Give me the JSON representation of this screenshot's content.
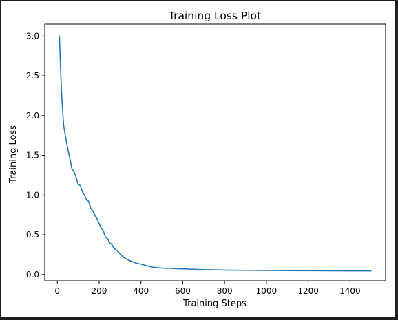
{
  "window": {
    "background": "#1e1e1e"
  },
  "chart_data": {
    "type": "line",
    "title": "Training Loss Plot",
    "xlabel": "Training Steps",
    "ylabel": "Training Loss",
    "xlim": [
      -60,
      1570
    ],
    "ylim": [
      -0.08,
      3.15
    ],
    "grid": false,
    "legend": "none",
    "xticks": [
      0,
      200,
      400,
      600,
      800,
      1000,
      1200,
      1400
    ],
    "yticks": [
      0.0,
      0.5,
      1.0,
      1.5,
      2.0,
      2.5,
      3.0
    ],
    "xtick_labels": [
      "0",
      "200",
      "400",
      "600",
      "800",
      "1000",
      "1200",
      "1400"
    ],
    "ytick_labels": [
      "0.0",
      "0.5",
      "1.0",
      "1.5",
      "2.0",
      "2.5",
      "3.0"
    ],
    "series": [
      {
        "color": "#1f77b4",
        "x": [
          10,
          20,
          30,
          40,
          50,
          60,
          70,
          80,
          90,
          100,
          110,
          120,
          130,
          140,
          150,
          160,
          170,
          180,
          190,
          200,
          210,
          220,
          230,
          240,
          250,
          260,
          270,
          280,
          290,
          300,
          320,
          340,
          360,
          380,
          400,
          420,
          440,
          460,
          480,
          500,
          550,
          600,
          650,
          700,
          750,
          800,
          900,
          1000,
          1100,
          1200,
          1300,
          1400,
          1500
        ],
        "y": [
          3.0,
          2.3,
          1.88,
          1.72,
          1.58,
          1.46,
          1.33,
          1.29,
          1.22,
          1.13,
          1.12,
          1.04,
          1.0,
          0.94,
          0.92,
          0.83,
          0.8,
          0.74,
          0.7,
          0.64,
          0.58,
          0.55,
          0.47,
          0.45,
          0.4,
          0.38,
          0.33,
          0.31,
          0.29,
          0.26,
          0.21,
          0.18,
          0.16,
          0.14,
          0.13,
          0.115,
          0.1,
          0.09,
          0.085,
          0.08,
          0.075,
          0.07,
          0.065,
          0.06,
          0.058,
          0.055,
          0.052,
          0.05,
          0.048,
          0.047,
          0.046,
          0.045,
          0.045
        ]
      }
    ]
  }
}
